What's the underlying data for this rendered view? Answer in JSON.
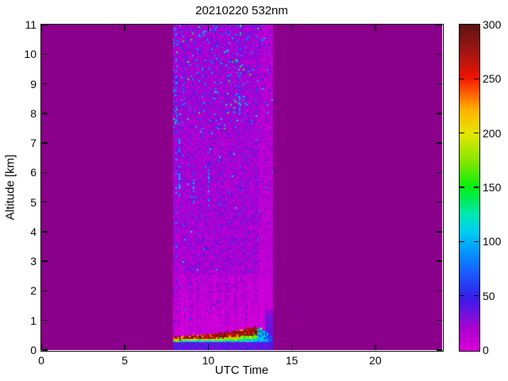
{
  "chart_data": {
    "type": "heatmap",
    "title": "20210220 532nm",
    "xlabel": "UTC Time",
    "ylabel": "Altitude [km]",
    "xlim": [
      0,
      24
    ],
    "ylim": [
      0,
      11
    ],
    "x_ticks": [
      0,
      5,
      10,
      15,
      20
    ],
    "y_ticks": [
      0,
      1,
      2,
      3,
      4,
      5,
      6,
      7,
      8,
      9,
      10,
      11
    ],
    "colorbar_lim": [
      0,
      300
    ],
    "colorbar_ticks": [
      0,
      50,
      100,
      150,
      200,
      250,
      300
    ],
    "colormap_stops": [
      [
        0,
        "#DB00DB"
      ],
      [
        20,
        "#AC00CF"
      ],
      [
        32,
        "#7B10DC"
      ],
      [
        45,
        "#4518E8"
      ],
      [
        55,
        "#2C2CF0"
      ],
      [
        75,
        "#1466FF"
      ],
      [
        95,
        "#00A2FF"
      ],
      [
        110,
        "#00CFF0"
      ],
      [
        125,
        "#00E8B4"
      ],
      [
        140,
        "#00EC50"
      ],
      [
        152,
        "#0CF00C"
      ],
      [
        172,
        "#7CE600"
      ],
      [
        200,
        "#E6E600"
      ],
      [
        222,
        "#FFB000"
      ],
      [
        238,
        "#FF5A00"
      ],
      [
        252,
        "#EE1200"
      ],
      [
        272,
        "#AA1611"
      ],
      [
        300,
        "#5C1412"
      ]
    ],
    "background_color": "#8B008B",
    "measurement_window_utc": [
      7.9,
      13.85
    ],
    "aerosol_layer": {
      "base_km": 0.26,
      "top_profile_utc_km": [
        [
          7.95,
          0.4
        ],
        [
          8.3,
          0.44
        ],
        [
          8.8,
          0.46
        ],
        [
          9.3,
          0.47
        ],
        [
          9.8,
          0.5
        ],
        [
          10.3,
          0.52
        ],
        [
          10.8,
          0.55
        ],
        [
          11.3,
          0.58
        ],
        [
          11.8,
          0.63
        ],
        [
          12.3,
          0.7
        ],
        [
          12.7,
          0.74
        ],
        [
          12.95,
          0.76
        ],
        [
          13.2,
          0.7
        ],
        [
          13.45,
          0.58
        ],
        [
          13.65,
          0.48
        ],
        [
          13.85,
          0.42
        ]
      ],
      "core_value_range": [
        258,
        300
      ],
      "mid_value_range": [
        148,
        216
      ],
      "edge_value_range": [
        92,
        136
      ],
      "tail_after_utc": 12.95
    },
    "magenta_streaks": [
      {
        "utc": 8.37,
        "top_km": 3.4,
        "strength": 20
      },
      {
        "utc": 8.7,
        "top_km": 2.2,
        "strength": 12
      },
      {
        "utc": 9.15,
        "top_km": 2.6,
        "strength": 15
      },
      {
        "utc": 9.65,
        "top_km": 2.3,
        "strength": 12
      },
      {
        "utc": 10.05,
        "top_km": 2.0,
        "strength": 11
      },
      {
        "utc": 10.36,
        "top_km": 3.1,
        "strength": 18
      },
      {
        "utc": 10.9,
        "top_km": 2.2,
        "strength": 12
      },
      {
        "utc": 11.45,
        "top_km": 2.7,
        "strength": 14
      },
      {
        "utc": 11.88,
        "top_km": 3.0,
        "strength": 16
      },
      {
        "utc": 12.15,
        "top_km": 2.2,
        "strength": 12
      },
      {
        "utc": 12.4,
        "top_km": 3.7,
        "strength": 20
      },
      {
        "utc": 12.64,
        "top_km": 3.3,
        "strength": 16
      },
      {
        "utc": 12.9,
        "top_km": 2.8,
        "strength": 14
      },
      {
        "utc": 13.12,
        "top_km": 4.1,
        "strength": 22
      }
    ],
    "blue_streaks": [
      {
        "utc": 8.02,
        "alt_km": [
          3.0,
          10.8
        ],
        "density": 0.22
      },
      {
        "utc": 8.22,
        "alt_km": [
          5.2,
          7.2
        ],
        "density": 0.5
      },
      {
        "utc": 9.08,
        "alt_km": [
          5.0,
          6.3
        ],
        "density": 0.5
      },
      {
        "utc": 10.0,
        "alt_km": [
          4.8,
          6.3
        ],
        "density": 0.45
      },
      {
        "utc": 11.85,
        "alt_km": [
          8.0,
          9.3
        ],
        "density": 0.4
      }
    ],
    "noise_seed": 1337
  }
}
